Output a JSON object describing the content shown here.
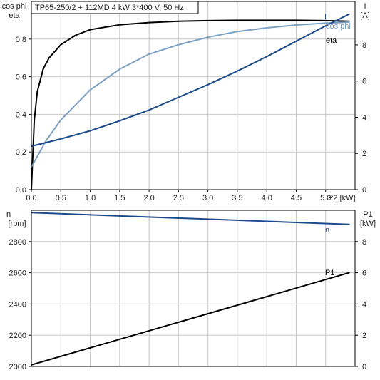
{
  "colors": {
    "axis": "#000000",
    "grid": "#c8c8c8",
    "eta": "#000000",
    "cos_phi": "#7aa0c4",
    "current": "#1a4a8a",
    "speed": "#1a4a8a",
    "power_input": "#000000"
  },
  "chart_data": [
    {
      "type": "line",
      "title": "TP65-250/2 + 112MD   4 kW   3*400 V, 50 Hz",
      "xlabel": "P2 [kW]",
      "xlim": [
        0,
        5.5
      ],
      "xticks": [
        "0.0",
        "0.5",
        "1.0",
        "1.5",
        "2.0",
        "2.5",
        "3.0",
        "3.5",
        "4.0",
        "4.5",
        "5.0"
      ],
      "ylabel_left": [
        "cos phi",
        "eta"
      ],
      "ylim_left": [
        0,
        1.0
      ],
      "yticks_left": [
        "0.0",
        "0.2",
        "0.4",
        "0.6",
        "0.8"
      ],
      "ylabel_right": [
        "I",
        "[A]"
      ],
      "ylim_right": [
        0,
        10.4
      ],
      "yticks_right": [
        "0",
        "2",
        "4",
        "6",
        "8"
      ],
      "grid": true,
      "series": [
        {
          "name": "eta",
          "axis": "left",
          "x": [
            0,
            0.05,
            0.1,
            0.2,
            0.3,
            0.5,
            0.75,
            1.0,
            1.5,
            2.0,
            2.5,
            3.0,
            3.5,
            4.0,
            4.5,
            5.0,
            5.4
          ],
          "y": [
            0,
            0.37,
            0.52,
            0.64,
            0.7,
            0.77,
            0.82,
            0.85,
            0.876,
            0.888,
            0.895,
            0.898,
            0.9,
            0.9,
            0.9,
            0.898,
            0.895
          ]
        },
        {
          "name": "cos phi",
          "axis": "left",
          "x": [
            0,
            0.25,
            0.5,
            1.0,
            1.5,
            2.0,
            2.5,
            3.0,
            3.5,
            4.0,
            4.5,
            5.0,
            5.4
          ],
          "y": [
            0.12,
            0.26,
            0.37,
            0.53,
            0.64,
            0.72,
            0.77,
            0.81,
            0.84,
            0.86,
            0.875,
            0.885,
            0.89
          ]
        },
        {
          "name": "I",
          "axis": "right",
          "x": [
            0,
            0.5,
            1.0,
            1.5,
            2.0,
            2.5,
            3.0,
            3.5,
            4.0,
            4.5,
            5.0,
            5.4
          ],
          "y": [
            2.4,
            2.8,
            3.25,
            3.8,
            4.4,
            5.1,
            5.8,
            6.55,
            7.35,
            8.2,
            9.05,
            9.7
          ]
        }
      ]
    },
    {
      "type": "line",
      "xlim": [
        0,
        5.5
      ],
      "ylabel_left": [
        "n",
        "[rpm]"
      ],
      "ylim_left": [
        2000,
        3000
      ],
      "yticks_left": [
        "2000",
        "2200",
        "2400",
        "2600",
        "2800"
      ],
      "ylabel_right": [
        "P1",
        "[kW]"
      ],
      "ylim_right": [
        0,
        10
      ],
      "yticks_right": [
        "0",
        "2",
        "4",
        "6",
        "8"
      ],
      "grid": true,
      "series": [
        {
          "name": "n",
          "axis": "left",
          "x": [
            0,
            5.4
          ],
          "y": [
            2985,
            2910
          ]
        },
        {
          "name": "P1",
          "axis": "right",
          "x": [
            0,
            5.4
          ],
          "y": [
            0.1,
            6.0
          ]
        }
      ]
    }
  ]
}
